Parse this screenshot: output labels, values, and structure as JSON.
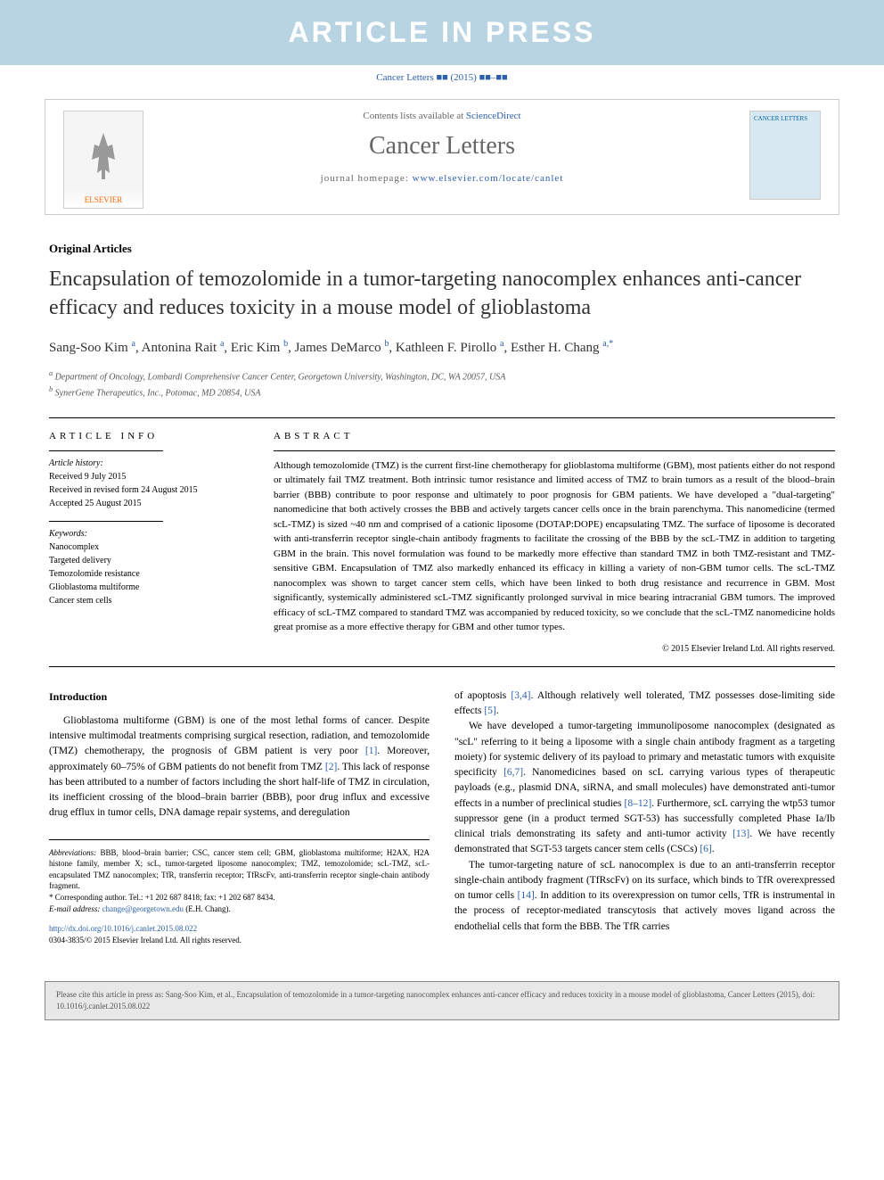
{
  "banner": "ARTICLE IN PRESS",
  "citation_top": "Cancer Letters ■■ (2015) ■■–■■",
  "header": {
    "contents_prefix": "Contents lists available at ",
    "contents_link": "ScienceDirect",
    "journal_name": "Cancer Letters",
    "homepage_prefix": "journal homepage: ",
    "homepage_url": "www.elsevier.com/locate/canlet",
    "publisher": "ELSEVIER",
    "cover_label": "CANCER LETTERS"
  },
  "article": {
    "type": "Original Articles",
    "title": "Encapsulation of temozolomide in a tumor-targeting nanocomplex enhances anti-cancer efficacy and reduces toxicity in a mouse model of glioblastoma",
    "authors_html": "Sang-Soo Kim <sup>a</sup>, Antonina Rait <sup>a</sup>, Eric Kim <sup>b</sup>, James DeMarco <sup>b</sup>, Kathleen F. Pirollo <sup>a</sup>, Esther H. Chang <sup>a,*</sup>",
    "affiliations": [
      "a Department of Oncology, Lombardi Comprehensive Cancer Center, Georgetown University, Washington, DC, WA 20057, USA",
      "b SynerGene Therapeutics, Inc., Potomac, MD 20854, USA"
    ]
  },
  "info": {
    "heading": "ARTICLE INFO",
    "history_label": "Article history:",
    "history": [
      "Received 9 July 2015",
      "Received in revised form 24 August 2015",
      "Accepted 25 August 2015"
    ],
    "keywords_label": "Keywords:",
    "keywords": [
      "Nanocomplex",
      "Targeted delivery",
      "Temozolomide resistance",
      "Glioblastoma multiforme",
      "Cancer stem cells"
    ]
  },
  "abstract": {
    "heading": "ABSTRACT",
    "text": "Although temozolomide (TMZ) is the current first-line chemotherapy for glioblastoma multiforme (GBM), most patients either do not respond or ultimately fail TMZ treatment. Both intrinsic tumor resistance and limited access of TMZ to brain tumors as a result of the blood–brain barrier (BBB) contribute to poor response and ultimately to poor prognosis for GBM patients. We have developed a \"dual-targeting\" nanomedicine that both actively crosses the BBB and actively targets cancer cells once in the brain parenchyma. This nanomedicine (termed scL-TMZ) is sized ~40 nm and comprised of a cationic liposome (DOTAP:DOPE) encapsulating TMZ. The surface of liposome is decorated with anti-transferrin receptor single-chain antibody fragments to facilitate the crossing of the BBB by the scL-TMZ in addition to targeting GBM in the brain. This novel formulation was found to be markedly more effective than standard TMZ in both TMZ-resistant and TMZ-sensitive GBM. Encapsulation of TMZ also markedly enhanced its efficacy in killing a variety of non-GBM tumor cells. The scL-TMZ nanocomplex was shown to target cancer stem cells, which have been linked to both drug resistance and recurrence in GBM. Most significantly, systemically administered scL-TMZ significantly prolonged survival in mice bearing intracranial GBM tumors. The improved efficacy of scL-TMZ compared to standard TMZ was accompanied by reduced toxicity, so we conclude that the scL-TMZ nanomedicine holds great promise as a more effective therapy for GBM and other tumor types.",
    "copyright": "© 2015 Elsevier Ireland Ltd. All rights reserved."
  },
  "body": {
    "intro_heading": "Introduction",
    "col1_p1": "Glioblastoma multiforme (GBM) is one of the most lethal forms of cancer. Despite intensive multimodal treatments comprising surgical resection, radiation, and temozolomide (TMZ) chemotherapy, the prognosis of GBM patient is very poor [1]. Moreover, approximately 60–75% of GBM patients do not benefit from TMZ [2]. This lack of response has been attributed to a number of factors including the short half-life of TMZ in circulation, its inefficient crossing of the blood–brain barrier (BBB), poor drug influx and excessive drug efflux in tumor cells, DNA damage repair systems, and deregulation",
    "col2_p1": "of apoptosis [3,4]. Although relatively well tolerated, TMZ possesses dose-limiting side effects [5].",
    "col2_p2": "We have developed a tumor-targeting immunoliposome nanocomplex (designated as \"scL\" referring to it being a liposome with a single chain antibody fragment as a targeting moiety) for systemic delivery of its payload to primary and metastatic tumors with exquisite specificity [6,7]. Nanomedicines based on scL carrying various types of therapeutic payloads (e.g., plasmid DNA, siRNA, and small molecules) have demonstrated anti-tumor effects in a number of preclinical studies [8–12]. Furthermore, scL carrying the wtp53 tumor suppressor gene (in a product termed SGT-53) has successfully completed Phase Ia/Ib clinical trials demonstrating its safety and anti-tumor activity [13]. We have recently demonstrated that SGT-53 targets cancer stem cells (CSCs) [6].",
    "col2_p3": "The tumor-targeting nature of scL nanocomplex is due to an anti-transferrin receptor single-chain antibody fragment (TfRscFv) on its surface, which binds to TfR overexpressed on tumor cells [14]. In addition to its overexpression on tumor cells, TfR is instrumental in the process of receptor-mediated transcytosis that actively moves ligand across the endothelial cells that form the BBB. The TfR carries"
  },
  "footer": {
    "abbrev_label": "Abbreviations:",
    "abbrev_text": " BBB, blood–brain barrier; CSC, cancer stem cell; GBM, glioblastoma multiforme; H2AX, H2A histone family, member X; scL, tumor-targeted liposome nanocomplex; TMZ, temozolomide; scL-TMZ, scL-encapsulated TMZ nanocomplex; TfR, transferrin receptor; TfRscFv, anti-transferrin receptor single-chain antibody fragment.",
    "corr_label": "* Corresponding author. Tel.: +1 202 687 8418; fax: +1 202 687 8434.",
    "email_label": "E-mail address: ",
    "email": "change@georgetown.edu",
    "email_suffix": " (E.H. Chang).",
    "doi_url": "http://dx.doi.org/10.1016/j.canlet.2015.08.022",
    "issn": "0304-3835/© 2015 Elsevier Ireland Ltd. All rights reserved."
  },
  "cite_box": "Please cite this article in press as: Sang-Soo Kim, et al., Encapsulation of temozolomide in a tumor-targeting nanocomplex enhances anti-cancer efficacy and reduces toxicity in a mouse model of glioblastoma, Cancer Letters (2015), doi: 10.1016/j.canlet.2015.08.022",
  "colors": {
    "banner_bg": "#b8d4e3",
    "banner_text": "#ffffff",
    "link": "#2b5faa",
    "text": "#000000",
    "muted": "#666666",
    "border": "#cccccc",
    "cite_bg": "#e8e8e8"
  }
}
